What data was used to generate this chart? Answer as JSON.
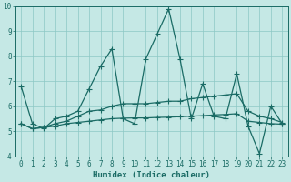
{
  "xlabel": "Humidex (Indice chaleur)",
  "background_color": "#c5e8e5",
  "grid_color": "#8cc8c4",
  "line_color": "#1a6b65",
  "xlim": [
    -0.5,
    23.5
  ],
  "ylim": [
    4,
    10
  ],
  "xticks": [
    0,
    1,
    2,
    3,
    4,
    5,
    6,
    7,
    8,
    9,
    10,
    11,
    12,
    13,
    14,
    15,
    16,
    17,
    18,
    19,
    20,
    21,
    22,
    23
  ],
  "yticks": [
    4,
    5,
    6,
    7,
    8,
    9,
    10
  ],
  "x": [
    0,
    1,
    2,
    3,
    4,
    5,
    6,
    7,
    8,
    9,
    10,
    11,
    12,
    13,
    14,
    15,
    16,
    17,
    18,
    19,
    20,
    21,
    22,
    23
  ],
  "y_main": [
    6.8,
    5.3,
    5.1,
    5.5,
    5.6,
    5.8,
    6.7,
    7.6,
    8.3,
    5.5,
    5.3,
    7.9,
    8.9,
    9.9,
    7.9,
    5.5,
    6.9,
    5.6,
    5.5,
    7.3,
    5.2,
    4.1,
    6.0,
    5.3
  ],
  "y_trend1": [
    5.3,
    5.1,
    5.15,
    5.2,
    5.3,
    5.35,
    5.4,
    5.45,
    5.5,
    5.52,
    5.53,
    5.53,
    5.55,
    5.56,
    5.58,
    5.6,
    5.62,
    5.65,
    5.67,
    5.7,
    5.4,
    5.35,
    5.3,
    5.28
  ],
  "y_trend2": [
    5.3,
    5.1,
    5.15,
    5.3,
    5.4,
    5.6,
    5.8,
    5.85,
    6.0,
    6.1,
    6.1,
    6.1,
    6.15,
    6.2,
    6.2,
    6.3,
    6.35,
    6.4,
    6.45,
    6.5,
    5.8,
    5.6,
    5.5,
    5.35
  ],
  "markersize": 3,
  "linewidth": 0.9,
  "tick_fontsize": 5.5,
  "label_fontsize": 6.5
}
